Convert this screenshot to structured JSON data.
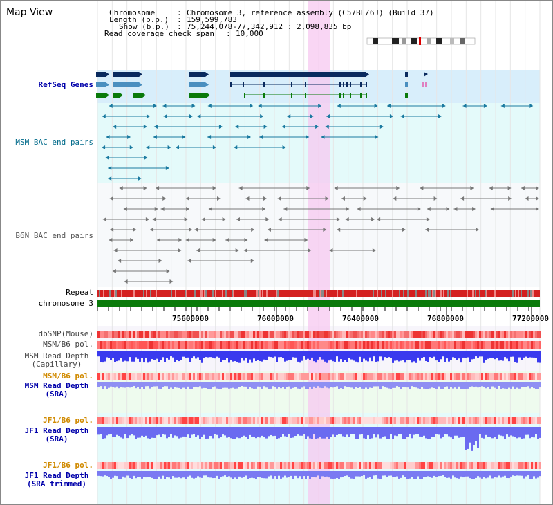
{
  "title": "Map View",
  "header": {
    "chromosome_key": "Chromosome",
    "chromosome_val": "Chromosome 3, reference assembly (C57BL/6J) (Build 37)",
    "length_key": "Length (b.p.)",
    "length_val": "159,599,783",
    "show_key": "Show (b.p.)",
    "show_val": "75,244,078-77,342,912 : 2,098,835 bp",
    "coverage_key": "Read coverage check span",
    "coverage_val": "10,000"
  },
  "tracks": {
    "refseq": "RefSeq Genes",
    "msm_bac": "MSM BAC end pairs",
    "b6n_bac": "B6N BAC end pairs",
    "repeat": "Repeat",
    "chromosome": "chromosome 3",
    "dbsnp": "dbSNP(Mouse)",
    "msm_b6_pol_1": "MSM/B6 pol.",
    "msm_depth_cap_1": "MSM Read Depth",
    "msm_depth_cap_2": "(Capillary)",
    "msm_b6_pol_2": "MSM/B6 pol.",
    "msm_depth_sra_1": "MSM Read Depth",
    "msm_depth_sra_2": "(SRA)",
    "jf1_b6_pol_1": "JF1/B6 pol.",
    "jf1_depth_sra_1": "JF1 Read Depth",
    "jf1_depth_sra_2": "(SRA)",
    "jf1_b6_pol_2": "JF1/B6 pol.",
    "jf1_depth_tr_1": "JF1 Read Depth",
    "jf1_depth_tr_2": "(SRA trimmed)"
  },
  "axis": {
    "ticks": [
      "75600000",
      "76000000",
      "76400000",
      "76800000",
      "77200000"
    ]
  },
  "colors": {
    "gene_dark": "#0a2a5e",
    "gene_mid": "#4a8fbf",
    "gene_green": "#0a7a0a",
    "refseq_bg": "#d8eefb",
    "msm_bg": "#e4fafa",
    "highlight": "#f7c8f0",
    "chromosome_bar": "#0a7a0a",
    "label_blue": "#0000aa",
    "label_teal": "#006a8a",
    "label_orange": "#d08a00",
    "depth_blue": "#3a3aee"
  }
}
